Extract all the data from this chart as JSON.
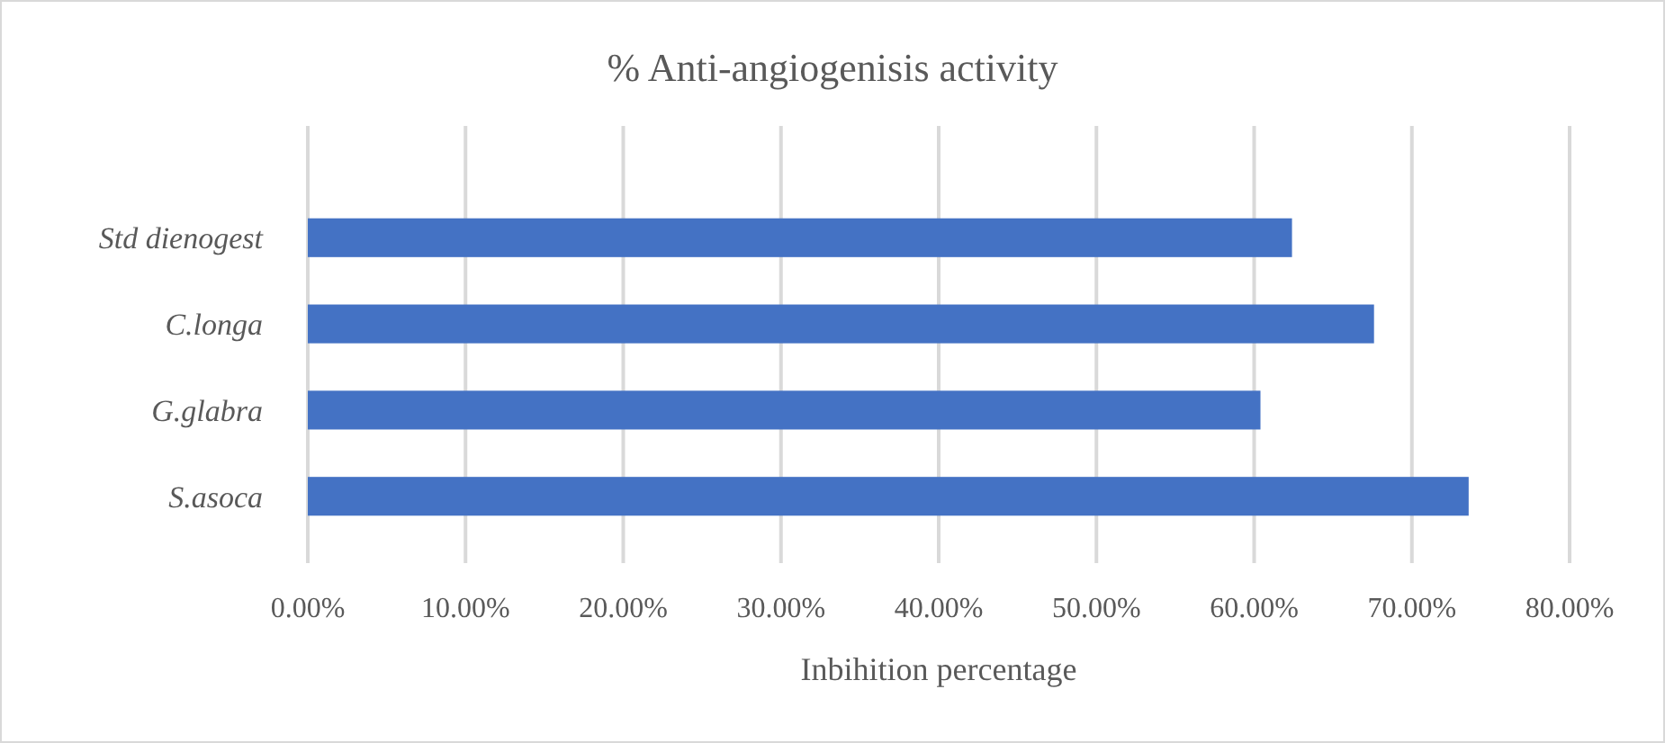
{
  "chart_data": {
    "type": "bar",
    "orientation": "horizontal",
    "title": "% Anti-angiogenisis activity",
    "xlabel": "Inbihition percentage",
    "categories": [
      "Std dienogest",
      "C.longa",
      "G.glabra",
      "S.asoca"
    ],
    "values": [
      62.4,
      67.6,
      60.4,
      73.6
    ],
    "color": "#4472c4",
    "xlim": [
      0,
      80
    ],
    "xticks": [
      {
        "value": 0,
        "label": "0.00%"
      },
      {
        "value": 10,
        "label": "10.00%"
      },
      {
        "value": 20,
        "label": "20.00%"
      },
      {
        "value": 30,
        "label": "30.00%"
      },
      {
        "value": 40,
        "label": "40.00%"
      },
      {
        "value": 50,
        "label": "50.00%"
      },
      {
        "value": 60,
        "label": "60.00%"
      },
      {
        "value": 70,
        "label": "70.00%"
      },
      {
        "value": 80,
        "label": "80.00%"
      }
    ],
    "grid": "x"
  }
}
